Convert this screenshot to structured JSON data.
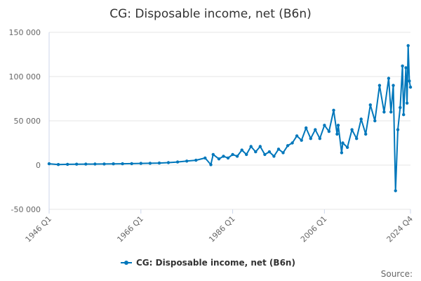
{
  "chart_data": {
    "type": "line",
    "title": "CG: Disposable income, net (B6n)",
    "x_tick_labels": [
      "1946 Q1",
      "1966 Q1",
      "1986 Q1",
      "2006 Q1",
      "2024 Q4"
    ],
    "x_range": [
      "1946 Q1",
      "2024 Q4"
    ],
    "y_tick_labels": [
      "150 000",
      "100 000",
      "50 000",
      "0",
      "-50 000"
    ],
    "y_ticks": [
      150000,
      100000,
      50000,
      0,
      -50000
    ],
    "ylim": [
      -50000,
      150000
    ],
    "grid": true,
    "legend_position": "bottom-center",
    "source_label": "Source:",
    "series": [
      {
        "name": "CG: Disposable income, net (B6n)",
        "color": "#0077bb",
        "points": [
          [
            "1946 Q1",
            1500
          ],
          [
            "1948 Q1",
            600
          ],
          [
            "1950 Q1",
            900
          ],
          [
            "1952 Q1",
            1000
          ],
          [
            "1954 Q1",
            1100
          ],
          [
            "1956 Q1",
            1200
          ],
          [
            "1958 Q1",
            1300
          ],
          [
            "1960 Q1",
            1400
          ],
          [
            "1962 Q1",
            1500
          ],
          [
            "1964 Q1",
            1700
          ],
          [
            "1966 Q1",
            1900
          ],
          [
            "1968 Q1",
            2100
          ],
          [
            "1970 Q1",
            2300
          ],
          [
            "1972 Q1",
            2800
          ],
          [
            "1974 Q1",
            3500
          ],
          [
            "1976 Q1",
            4500
          ],
          [
            "1978 Q1",
            5500
          ],
          [
            "1980 Q1",
            8000
          ],
          [
            "1981 Q2",
            500
          ],
          [
            "1981 Q4",
            12000
          ],
          [
            "1983 Q1",
            7000
          ],
          [
            "1984 Q1",
            10000
          ],
          [
            "1985 Q1",
            8000
          ],
          [
            "1986 Q1",
            12000
          ],
          [
            "1987 Q1",
            10000
          ],
          [
            "1988 Q1",
            17000
          ],
          [
            "1989 Q1",
            12000
          ],
          [
            "1990 Q1",
            21000
          ],
          [
            "1991 Q1",
            15000
          ],
          [
            "1992 Q1",
            21000
          ],
          [
            "1993 Q1",
            12000
          ],
          [
            "1994 Q1",
            15000
          ],
          [
            "1995 Q1",
            10000
          ],
          [
            "1996 Q1",
            18000
          ],
          [
            "1997 Q1",
            14000
          ],
          [
            "1998 Q1",
            22000
          ],
          [
            "1999 Q1",
            25000
          ],
          [
            "2000 Q1",
            33000
          ],
          [
            "2001 Q1",
            28000
          ],
          [
            "2002 Q1",
            42000
          ],
          [
            "2003 Q1",
            30000
          ],
          [
            "2004 Q1",
            40000
          ],
          [
            "2005 Q1",
            30000
          ],
          [
            "2006 Q1",
            45000
          ],
          [
            "2007 Q1",
            38000
          ],
          [
            "2008 Q1",
            62000
          ],
          [
            "2008 Q4",
            35000
          ],
          [
            "2009 Q1",
            45000
          ],
          [
            "2009 Q4",
            14000
          ],
          [
            "2010 Q1",
            25000
          ],
          [
            "2011 Q1",
            20000
          ],
          [
            "2012 Q1",
            40000
          ],
          [
            "2013 Q1",
            30000
          ],
          [
            "2014 Q1",
            52000
          ],
          [
            "2015 Q1",
            35000
          ],
          [
            "2016 Q1",
            68000
          ],
          [
            "2017 Q1",
            50000
          ],
          [
            "2018 Q1",
            90000
          ],
          [
            "2019 Q1",
            60000
          ],
          [
            "2020 Q1",
            98000
          ],
          [
            "2020 Q3",
            60000
          ],
          [
            "2021 Q1",
            90000
          ],
          [
            "2021 Q3",
            -29000
          ],
          [
            "2022 Q1",
            40000
          ],
          [
            "2022 Q3",
            65000
          ],
          [
            "2023 Q1",
            112000
          ],
          [
            "2023 Q2",
            57000
          ],
          [
            "2023 Q4",
            110000
          ],
          [
            "2024 Q1",
            70000
          ],
          [
            "2024 Q2",
            135000
          ],
          [
            "2024 Q3",
            95000
          ],
          [
            "2024 Q4",
            88000
          ]
        ]
      }
    ]
  }
}
